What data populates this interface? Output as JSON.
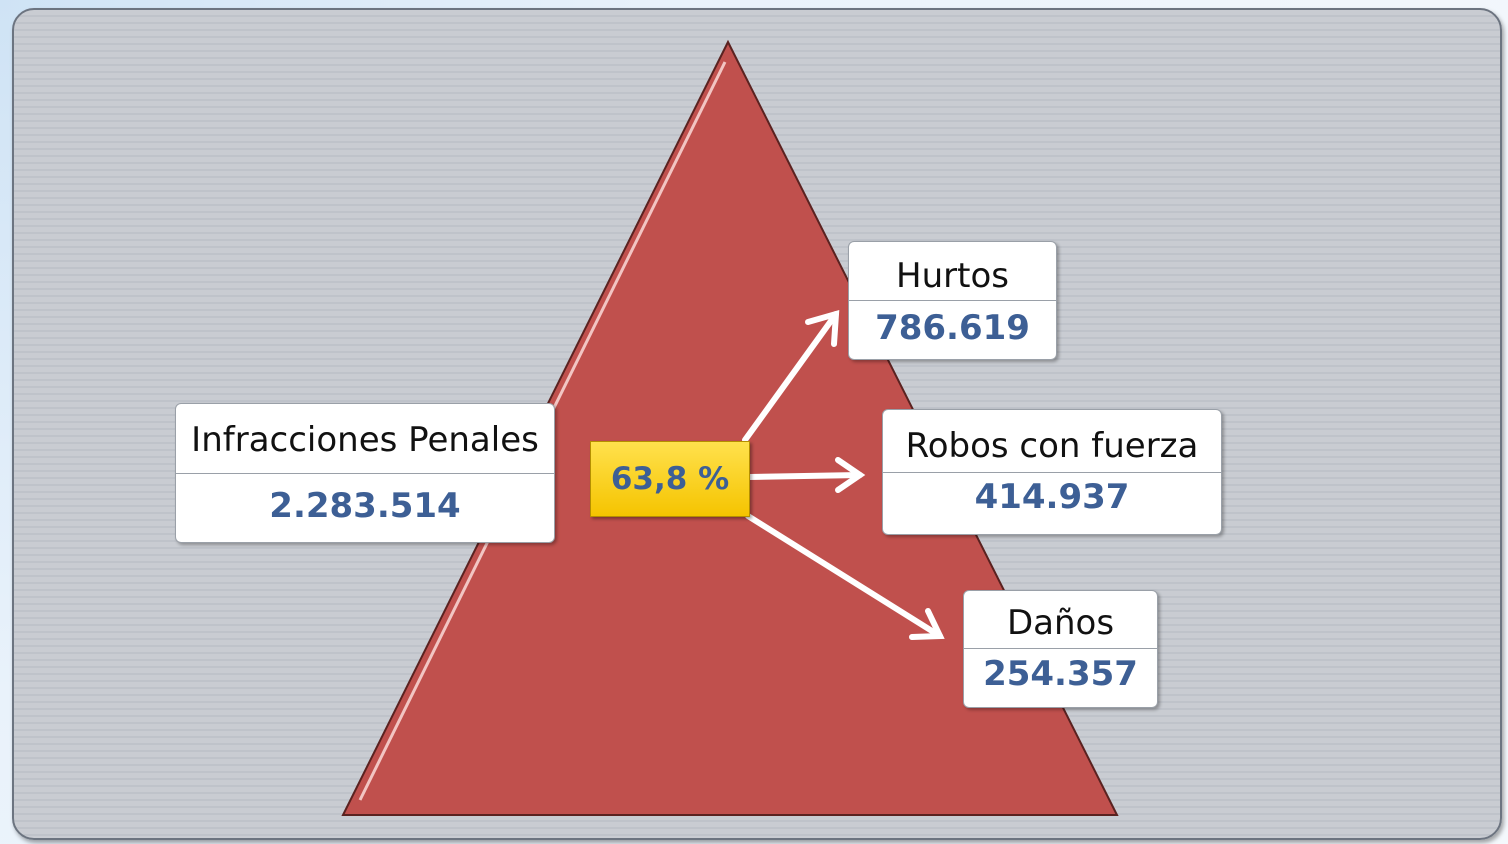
{
  "source": {
    "label": "Infracciones Penales",
    "value": "2.283.514"
  },
  "share": "63,8 %",
  "nodes": [
    {
      "label": "Hurtos",
      "value": "786.619"
    },
    {
      "label": "Robos con fuerza",
      "value": "414.937"
    },
    {
      "label": "Daños",
      "value": "254.357"
    }
  ]
}
